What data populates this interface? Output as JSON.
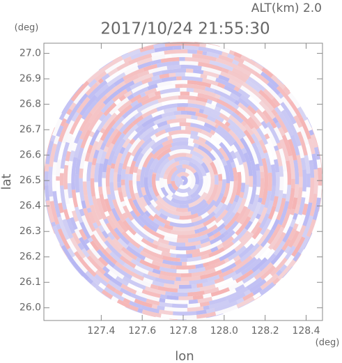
{
  "chart_data": {
    "type": "radar-ppi",
    "title": "2017/10/24 21:55:30",
    "subtitle": "ALT(km) 2.0",
    "x_label": "lon",
    "y_label": "lat",
    "x_unit": "(deg)",
    "y_unit": "(deg)",
    "center": [
      127.8,
      26.5
    ],
    "xlim": [
      127.12,
      128.48
    ],
    "ylim": [
      25.95,
      27.04
    ],
    "xticks": [
      127.4,
      127.6,
      127.8,
      {
        "value": 128.0,
        "label": "128.0"
      },
      128.2,
      128.4
    ],
    "yticks": [
      {
        "value": 26.0,
        "label": "26.0"
      },
      26.1,
      26.2,
      26.3,
      26.4,
      26.5,
      26.6,
      26.7,
      26.8,
      26.9,
      {
        "value": 27.0,
        "label": "27.0"
      }
    ],
    "colors": [
      "#f5b3b3",
      "#b7b7f3"
    ]
  }
}
